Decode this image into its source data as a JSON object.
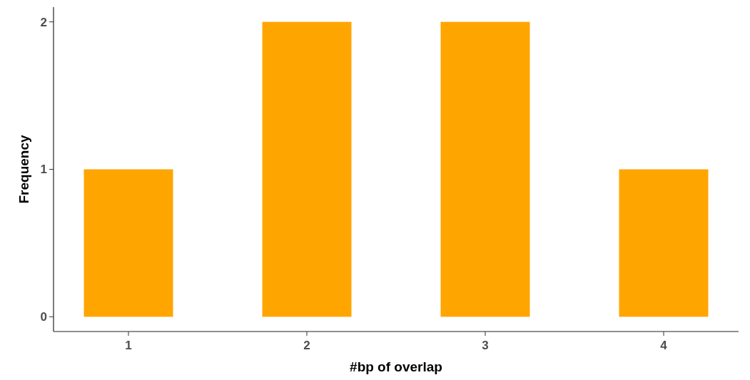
{
  "chart_data": {
    "type": "bar",
    "xlabel": "#bp of overlap",
    "ylabel": "Frequency",
    "categories": [
      "1",
      "2",
      "3",
      "4"
    ],
    "values": [
      1,
      2,
      2,
      1
    ],
    "color": "#ffa500",
    "ylim": [
      -0.1,
      2.1
    ],
    "yticks": [
      0,
      1,
      2
    ],
    "grid": false
  }
}
